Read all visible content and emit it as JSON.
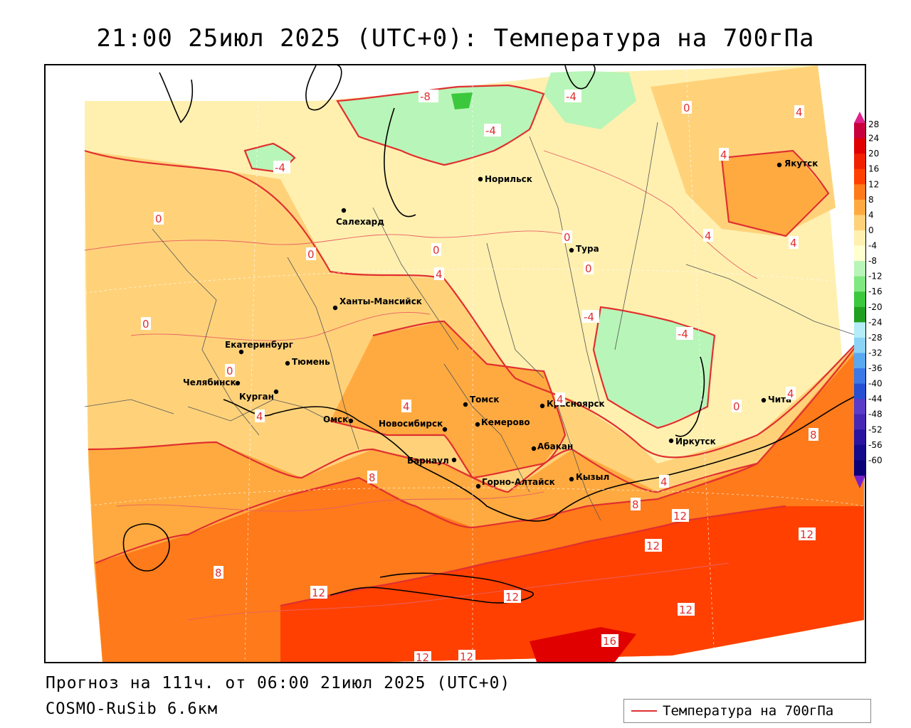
{
  "title": "21:00 25июл 2025 (UTC+0): Температура на 700гПа",
  "footer": {
    "forecast": "Прогноз на 111ч. от 06:00 21июл 2025 (UTC+0)",
    "model": "COSMO-RuSib 6.6км"
  },
  "legend": {
    "label": "Температура на 700гПа",
    "line_color": "#e03030"
  },
  "colorbar": {
    "levels": [
      "28",
      "24",
      "20",
      "16",
      "12",
      "8",
      "4",
      "0",
      "-4",
      "-8",
      "-12",
      "-16",
      "-20",
      "-24",
      "-28",
      "-32",
      "-36",
      "-40",
      "-44",
      "-48",
      "-52",
      "-56",
      "-60"
    ],
    "colors": [
      "#c8003c",
      "#e00000",
      "#f02000",
      "#ff4000",
      "#ff7a1a",
      "#ffaa40",
      "#ffd27a",
      "#fff0b0",
      "#ffffd0",
      "#b8f5b8",
      "#80e880",
      "#3cc83c",
      "#20a020",
      "#b4ecf8",
      "#8cd4f5",
      "#5aa8f0",
      "#3c78e6",
      "#2850d2",
      "#5a3cc8",
      "#4628b4",
      "#2814a0",
      "#140a8c",
      "#0a0078"
    ],
    "top_arrow_color": "#e0208c",
    "bottom_arrow_color": "#7a20c8"
  },
  "cities": [
    {
      "name": "Якутск"
    },
    {
      "name": "Норильск"
    },
    {
      "name": "Салехард"
    },
    {
      "name": "Тура"
    },
    {
      "name": "Ханты-Мансийск"
    },
    {
      "name": "Екатеринбург"
    },
    {
      "name": "Тюмень"
    },
    {
      "name": "Челябинск"
    },
    {
      "name": "Курган"
    },
    {
      "name": "Омск"
    },
    {
      "name": "Томск"
    },
    {
      "name": "Новосибирск"
    },
    {
      "name": "Кемерово"
    },
    {
      "name": "Красноярск"
    },
    {
      "name": "Барнаул"
    },
    {
      "name": "Абакан"
    },
    {
      "name": "Горно-Алтайск"
    },
    {
      "name": "Кызыл"
    },
    {
      "name": "Иркутск"
    },
    {
      "name": "Чита"
    }
  ],
  "isolines": [
    "-8",
    "-4",
    "-4",
    "-4",
    "-4",
    "-4",
    "0",
    "0",
    "0",
    "0",
    "0",
    "0",
    "0",
    "0",
    "0",
    "4",
    "4",
    "4",
    "4",
    "4",
    "4",
    "4",
    "4",
    "4",
    "4",
    "8",
    "8",
    "8",
    "8",
    "12",
    "12",
    "12",
    "12",
    "12",
    "12",
    "12",
    "12",
    "16"
  ]
}
